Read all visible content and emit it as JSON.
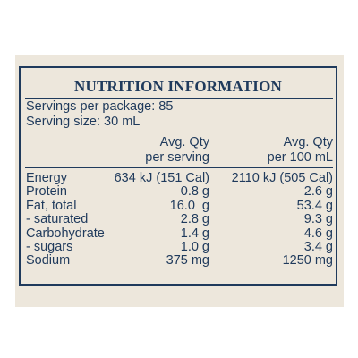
{
  "title": "NUTRITION INFORMATION",
  "servings_per_package": "Servings per package: 85",
  "serving_size": "Serving size: 30 mL",
  "columns": {
    "serving_line1": "Avg. Qty",
    "serving_line2": "per serving",
    "per100_line1": "Avg. Qty",
    "per100_line2": "per 100 mL"
  },
  "rows": [
    {
      "label": "Energy",
      "per_serving": "634 kJ (151 Cal)",
      "per_100": "2110 kJ (505 Cal)"
    },
    {
      "label": "Protein",
      "per_serving": "0.8 g",
      "per_100": "2.6 g"
    },
    {
      "label": "Fat, total",
      "per_serving": "16.0  g",
      "per_100": "53.4 g"
    },
    {
      "label": "- saturated",
      "per_serving": "2.8 g",
      "per_100": "9.3 g"
    },
    {
      "label": "Carbohydrate",
      "per_serving": "1.4 g",
      "per_100": "4.6 g"
    },
    {
      "label": "- sugars",
      "per_serving": "1.0 g",
      "per_100": "3.4 g"
    },
    {
      "label": "Sodium",
      "per_serving": "375 mg",
      "per_100": "1250 mg"
    }
  ],
  "colors": {
    "ink": "#1f3a5c",
    "panel": "#ede7dc",
    "background": "#ffffff"
  }
}
